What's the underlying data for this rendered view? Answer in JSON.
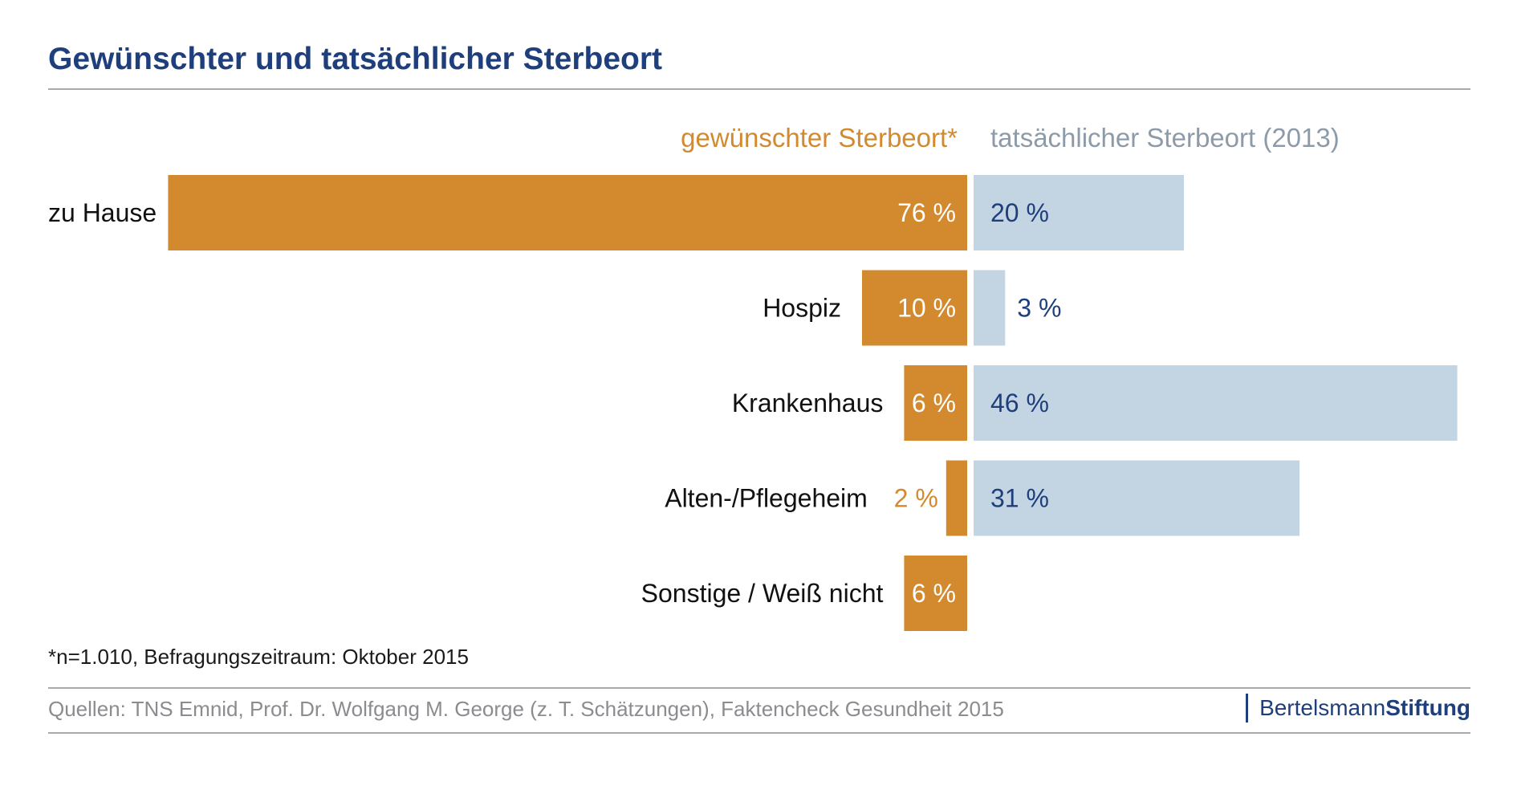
{
  "title": "Gewünschter und tatsächlicher Sterbeort",
  "legend": {
    "desired": "gewünschter Sterbeort*",
    "actual": "tatsächlicher Sterbeort (2013)"
  },
  "footnote": "*n=1.010, Befragungszeitraum: Oktober 2015",
  "source": "Quellen: TNS Emnid, Prof. Dr. Wolfgang M. George  (z. T. Schätzungen), Faktencheck Gesundheit 2015",
  "logo": {
    "part1": "Bertelsmann",
    "part2": "Stiftung"
  },
  "colors": {
    "title": "#1f3f7c",
    "desired_bar": "#d38a2f",
    "actual_bar": "#c3d4e2",
    "actual_label": "#1f3f7c",
    "legend_actual": "#8d9ba9",
    "rule": "#a7a9ac"
  },
  "chart_data": {
    "type": "bar",
    "orientation": "diverging-horizontal",
    "categories": [
      "zu Hause",
      "Hospiz",
      "Krankenhaus",
      "Alten-/Pflegeheim",
      "Sonstige / Weiß nicht"
    ],
    "series": [
      {
        "name": "gewünschter Sterbeort*",
        "values": [
          76,
          10,
          6,
          2,
          6
        ],
        "labels": [
          "76 %",
          "10 %",
          "6 %",
          "2 %",
          "6 %"
        ]
      },
      {
        "name": "tatsächlicher Sterbeort (2013)",
        "values": [
          20,
          3,
          46,
          31,
          null
        ],
        "labels": [
          "20 %",
          "3 %",
          "46 %",
          "31 %",
          ""
        ]
      }
    ],
    "unit": "%",
    "xlabel": "",
    "ylabel": "",
    "grid": false,
    "legend_position": "top"
  }
}
